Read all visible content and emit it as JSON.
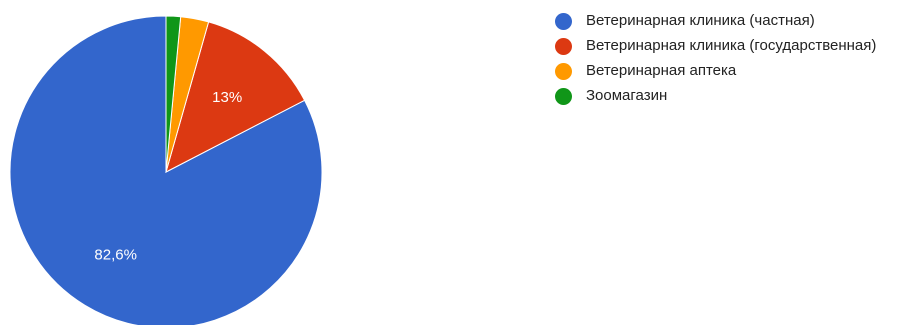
{
  "chart_data": {
    "type": "pie",
    "categories": [
      "Ветеринарная клиника (частная)",
      "Ветеринарная клиника (государственная)",
      "Ветеринарная аптека",
      "Зоомагазин"
    ],
    "values": [
      82.6,
      13.0,
      2.9,
      1.5
    ],
    "data_labels": [
      "82,6%",
      "13%",
      "",
      ""
    ],
    "colors": [
      "#3366cc",
      "#dc3912",
      "#ff9900",
      "#109618"
    ],
    "title": "",
    "legend_position": "right",
    "start_angle_deg": 90,
    "direction": "counterclockwise"
  },
  "legend": {
    "items": [
      {
        "label": "Ветеринарная клиника (частная)",
        "color": "#3366cc"
      },
      {
        "label": "Ветеринарная клиника (государственная)",
        "color": "#dc3912"
      },
      {
        "label": "Ветеринарная аптека",
        "color": "#ff9900"
      },
      {
        "label": "Зоомагазин",
        "color": "#109618"
      }
    ]
  }
}
